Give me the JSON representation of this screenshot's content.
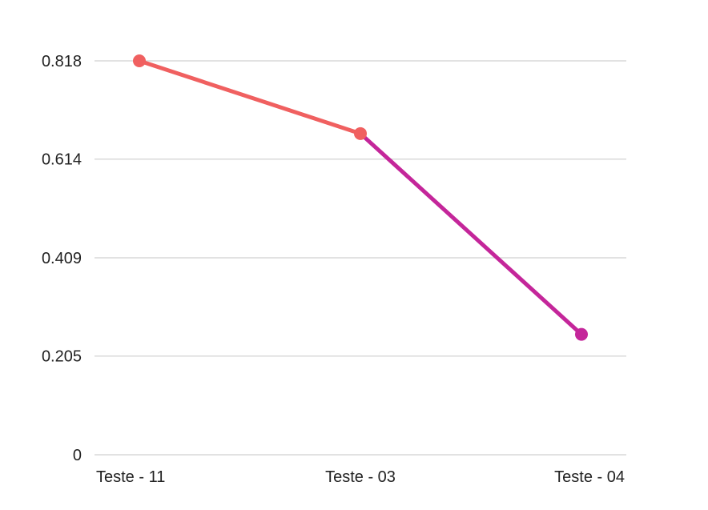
{
  "chart_data": {
    "type": "line",
    "categories": [
      "Teste - 11",
      "Teste - 03",
      "Teste - 04"
    ],
    "values": [
      0.818,
      0.667,
      0.25
    ],
    "ylim": [
      0,
      0.818
    ],
    "yticks": [
      "0",
      "0.205",
      "0.409",
      "0.614",
      "0.818"
    ],
    "grid": true,
    "segment_colors": [
      "#f06060",
      "#c4269a"
    ],
    "point_colors": [
      "#f06060",
      "#f06060",
      "#c4269a"
    ]
  }
}
